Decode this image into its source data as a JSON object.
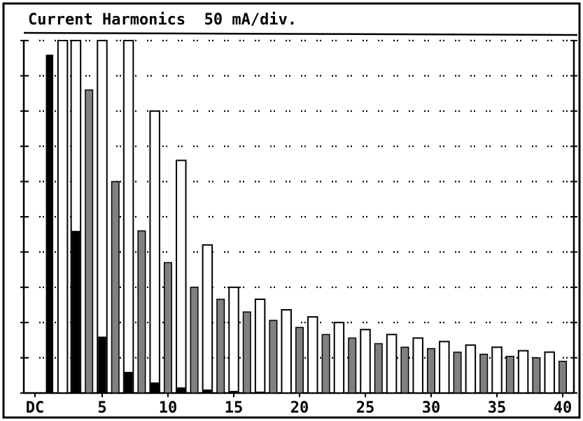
{
  "chart_data": {
    "type": "bar",
    "title": "Current Harmonics  50 mA/div.",
    "x_tick_labels": [
      "DC",
      "5",
      "10",
      "15",
      "20",
      "25",
      "30",
      "35",
      "40"
    ],
    "x_tick_values": [
      0,
      5,
      10,
      15,
      20,
      25,
      30,
      35,
      40
    ],
    "grid": "dotted horizontal",
    "y_divisions": 10,
    "y_unit_per_division_mA": 50,
    "ylim": [
      0,
      500
    ],
    "colors": {
      "filled": "#000000",
      "gray": "#808080",
      "open": "#ffffff",
      "outline": "#000000"
    },
    "bars": [
      {
        "n": 1,
        "value": 480,
        "style": "filled"
      },
      {
        "n": 2,
        "value": 500,
        "style": "open"
      },
      {
        "n": 3,
        "value": 500,
        "style": "open",
        "inner_value": 230
      },
      {
        "n": 4,
        "value": 430,
        "style": "gray"
      },
      {
        "n": 5,
        "value": 500,
        "style": "open",
        "inner_value": 80
      },
      {
        "n": 6,
        "value": 300,
        "style": "gray"
      },
      {
        "n": 7,
        "value": 500,
        "style": "open",
        "inner_value": 30
      },
      {
        "n": 8,
        "value": 230,
        "style": "gray"
      },
      {
        "n": 9,
        "value": 400,
        "style": "open",
        "inner_value": 15
      },
      {
        "n": 10,
        "value": 185,
        "style": "gray"
      },
      {
        "n": 11,
        "value": 330,
        "style": "open",
        "inner_value": 8
      },
      {
        "n": 12,
        "value": 150,
        "style": "gray"
      },
      {
        "n": 13,
        "value": 210,
        "style": "open",
        "inner_value": 5
      },
      {
        "n": 14,
        "value": 133,
        "style": "gray"
      },
      {
        "n": 15,
        "value": 150,
        "style": "open",
        "inner_value": 3
      },
      {
        "n": 16,
        "value": 115,
        "style": "gray"
      },
      {
        "n": 17,
        "value": 133,
        "style": "open",
        "inner_value": 2
      },
      {
        "n": 18,
        "value": 103,
        "style": "gray"
      },
      {
        "n": 19,
        "value": 118,
        "style": "open"
      },
      {
        "n": 20,
        "value": 93,
        "style": "gray"
      },
      {
        "n": 21,
        "value": 108,
        "style": "open"
      },
      {
        "n": 22,
        "value": 83,
        "style": "gray"
      },
      {
        "n": 23,
        "value": 100,
        "style": "open"
      },
      {
        "n": 24,
        "value": 78,
        "style": "gray"
      },
      {
        "n": 25,
        "value": 90,
        "style": "open"
      },
      {
        "n": 26,
        "value": 70,
        "style": "gray"
      },
      {
        "n": 27,
        "value": 83,
        "style": "open"
      },
      {
        "n": 28,
        "value": 65,
        "style": "gray"
      },
      {
        "n": 29,
        "value": 78,
        "style": "open"
      },
      {
        "n": 30,
        "value": 63,
        "style": "gray"
      },
      {
        "n": 31,
        "value": 73,
        "style": "open"
      },
      {
        "n": 32,
        "value": 58,
        "style": "gray"
      },
      {
        "n": 33,
        "value": 68,
        "style": "open"
      },
      {
        "n": 34,
        "value": 55,
        "style": "gray"
      },
      {
        "n": 35,
        "value": 65,
        "style": "open"
      },
      {
        "n": 36,
        "value": 52,
        "style": "gray"
      },
      {
        "n": 37,
        "value": 60,
        "style": "open"
      },
      {
        "n": 38,
        "value": 50,
        "style": "gray"
      },
      {
        "n": 39,
        "value": 58,
        "style": "open"
      },
      {
        "n": 40,
        "value": 45,
        "style": "gray"
      }
    ]
  }
}
